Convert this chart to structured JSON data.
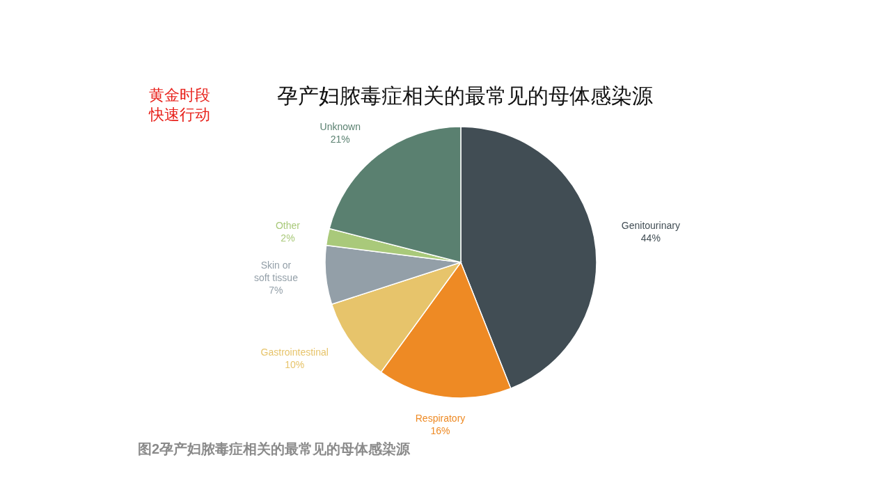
{
  "chart_data": {
    "type": "pie",
    "title": "孕产妇脓毒症相关的最常见的母体感染源",
    "categories": [
      "Genitourinary",
      "Respiratory",
      "Gastrointestinal",
      "Skin or soft tissue",
      "Other",
      "Unknown"
    ],
    "values": [
      44,
      16,
      10,
      7,
      2,
      21
    ],
    "colors": [
      "#414d54",
      "#ee8a24",
      "#e7c46b",
      "#939fa8",
      "#a9c97a",
      "#5a8070"
    ],
    "value_labels": [
      "44%",
      "16%",
      "10%",
      "7%",
      "2%",
      "21%"
    ],
    "annotations": [
      "黄金时段",
      "快速行动",
      "图2孕产妇脓毒症相关的最常见的母体感染源"
    ]
  }
}
